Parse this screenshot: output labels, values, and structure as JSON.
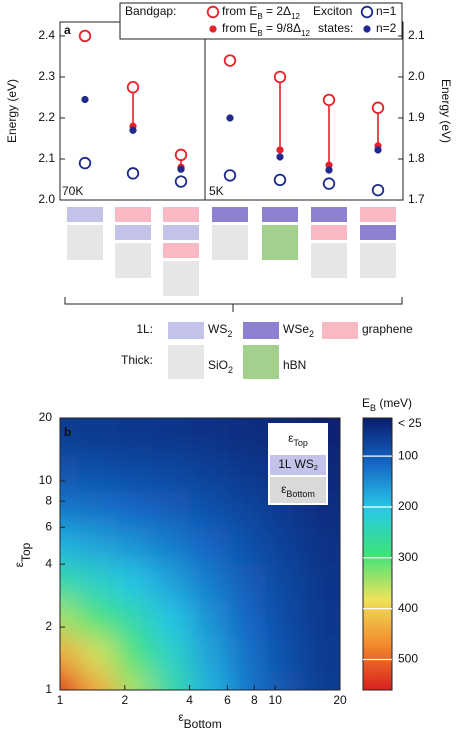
{
  "chart_data": [
    {
      "type": "scatter",
      "label": "a",
      "ylabel": "Energy (eV)",
      "y2label": "Energy (eV)",
      "ylim": [
        2.0,
        2.434
      ],
      "yticks": [
        {
          "value": 2.0,
          "label": "2.0"
        },
        2.1,
        2.2,
        2.3,
        2.4
      ],
      "y2lim": [
        1.7,
        2.134
      ],
      "y2ticks": [
        1.7,
        1.8,
        1.9,
        {
          "value": 2.0,
          "label": "2.0"
        },
        2.1
      ],
      "temperatures": [
        "70K",
        "5K"
      ],
      "point_axes": [
        "y",
        "y",
        "y",
        "y2",
        "y2",
        "y2",
        "y2"
      ],
      "bandgap_title": "Bandgap:",
      "exciton_title": [
        "Exciton",
        "states:"
      ],
      "series": [
        {
          "name": [
            "from E",
            "B",
            " = 2Δ",
            "12"
          ],
          "color": "#e8202a",
          "marker": "open",
          "values": [
            2.4,
            2.275,
            2.11,
            2.04,
            2.0,
            1.944,
            1.925
          ]
        },
        {
          "name": [
            "from E",
            "B",
            " = 9/8Δ",
            "12"
          ],
          "color": "#e8202a",
          "marker": "filled",
          "values": [
            null,
            2.18,
            2.08,
            null,
            1.822,
            1.785,
            1.832
          ]
        },
        {
          "name": "n=1",
          "color": "#1f2a8c",
          "marker": "open",
          "values": [
            2.09,
            2.065,
            2.045,
            1.76,
            1.749,
            1.74,
            1.724
          ]
        },
        {
          "name": "n=2",
          "color": "#1f2a8c",
          "marker": "filled",
          "values": [
            2.245,
            2.17,
            2.075,
            1.9,
            1.805,
            1.773,
            1.822
          ]
        }
      ],
      "layer_legend": [
        {
          "label": "1L:",
          "items": [
            {
              "name": [
                "WS",
                "2"
              ],
              "color": "#c3c3ea"
            },
            {
              "name": [
                "WSe",
                "2"
              ],
              "color": "#9080d2"
            },
            {
              "name": "graphene",
              "color": "#f9b9c2"
            }
          ]
        },
        {
          "label": "Thick:",
          "items": [
            {
              "name": [
                "SiO",
                "2"
              ],
              "color": "#e6e6e6"
            },
            {
              "name": "hBN",
              "color": "#a2d18e"
            }
          ]
        }
      ]
    },
    {
      "type": "heatmap",
      "label": "b",
      "xlabel": [
        "ε",
        "Bottom"
      ],
      "ylabel": [
        "ε",
        "Top"
      ],
      "xscale": "log",
      "yscale": "log",
      "xlim": [
        1,
        20
      ],
      "ylim": [
        1,
        20
      ],
      "xticks": [
        1,
        2,
        4,
        6,
        8,
        10,
        20
      ],
      "yticks": [
        1,
        2,
        4,
        6,
        8,
        10,
        20
      ],
      "x": [
        1,
        1.5,
        2.2,
        3.3,
        5,
        7.5,
        11,
        16.5
      ],
      "y": [
        1,
        1.5,
        2.2,
        3.3,
        5,
        7.5,
        11,
        16.5
      ],
      "z": [
        [
          550,
          440,
          344,
          256,
          183,
          129,
          92,
          63
        ],
        [
          440,
          367,
          297,
          229,
          169,
          122,
          88,
          61
        ],
        [
          344,
          297,
          250,
          200,
          153,
          113,
          83,
          59
        ],
        [
          256,
          229,
          200,
          167,
          133,
          102,
          77,
          56
        ],
        [
          183,
          169,
          153,
          133,
          110,
          88,
          69,
          51
        ],
        [
          129,
          122,
          113,
          102,
          88,
          73,
          59,
          46
        ],
        [
          92,
          88,
          83,
          77,
          69,
          59,
          50,
          40
        ],
        [
          63,
          61,
          59,
          56,
          51,
          46,
          40,
          33
        ]
      ],
      "colorbar": {
        "title": [
          "E",
          "B",
          " (meV)"
        ],
        "clim": [
          25,
          560
        ],
        "ticks": [
          {
            "value": 25,
            "label": "< 25"
          },
          100,
          200,
          300,
          400,
          500
        ],
        "colormap": [
          "#081d6b",
          "#1566c6",
          "#27c9e6",
          "#3de37a",
          "#eee25a",
          "#f28a2e",
          "#d8201e"
        ]
      },
      "inset": [
        [
          "ε",
          "Top"
        ],
        [
          "1L WS",
          "2"
        ],
        [
          "ε",
          "Bottom"
        ]
      ]
    }
  ]
}
